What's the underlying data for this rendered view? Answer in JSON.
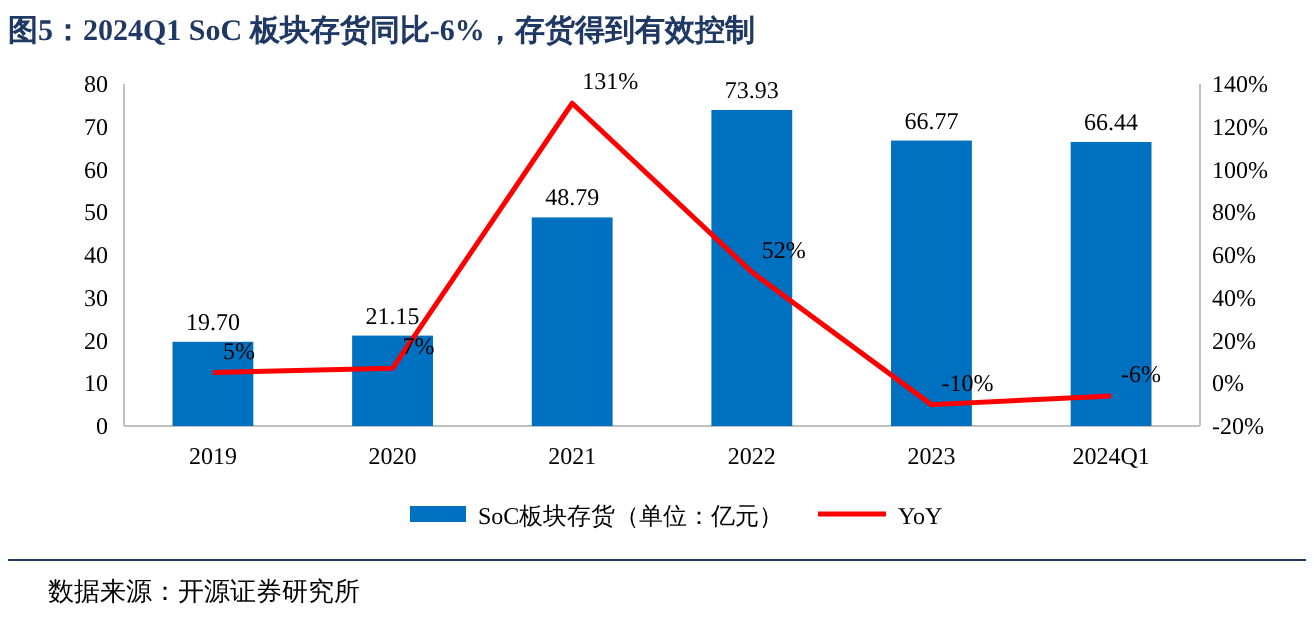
{
  "chart_data": {
    "type": "bar",
    "title": "图5：2024Q1 SoC 板块存货同比-6%，存货得到有效控制",
    "categories": [
      "2019",
      "2020",
      "2021",
      "2022",
      "2023",
      "2024Q1"
    ],
    "series": [
      {
        "name": "SoC板块存货（单位：亿元）",
        "color": "#0070c0",
        "values": [
          19.7,
          21.15,
          48.79,
          73.93,
          66.77,
          66.44
        ],
        "value_labels": [
          "19.70",
          "21.15",
          "48.79",
          "73.93",
          "66.77",
          "66.44"
        ]
      },
      {
        "name": "YoY",
        "type": "line",
        "axis": "y2",
        "color": "#ff0000",
        "values": [
          5,
          7,
          131,
          52,
          -10,
          -6
        ],
        "value_labels": [
          "5%",
          "7%",
          "131%",
          "52%",
          "-10%",
          "-6%"
        ]
      }
    ],
    "ylim": [
      0,
      80
    ],
    "yticks": [
      0,
      10,
      20,
      30,
      40,
      50,
      60,
      70,
      80
    ],
    "y2lim": [
      -20,
      140
    ],
    "y2ticks": [
      {
        "value": -20,
        "label": "-20%"
      },
      {
        "value": 0,
        "label": "0%"
      },
      {
        "value": 20,
        "label": "20%"
      },
      {
        "value": 40,
        "label": "40%"
      },
      {
        "value": 60,
        "label": "60%"
      },
      {
        "value": 80,
        "label": "80%"
      },
      {
        "value": 100,
        "label": "100%"
      },
      {
        "value": 120,
        "label": "120%"
      },
      {
        "value": 140,
        "label": "140%"
      }
    ],
    "legend": "bottom",
    "marker": "none",
    "annotations": [
      "数据来源：开源证券研究所"
    ]
  }
}
